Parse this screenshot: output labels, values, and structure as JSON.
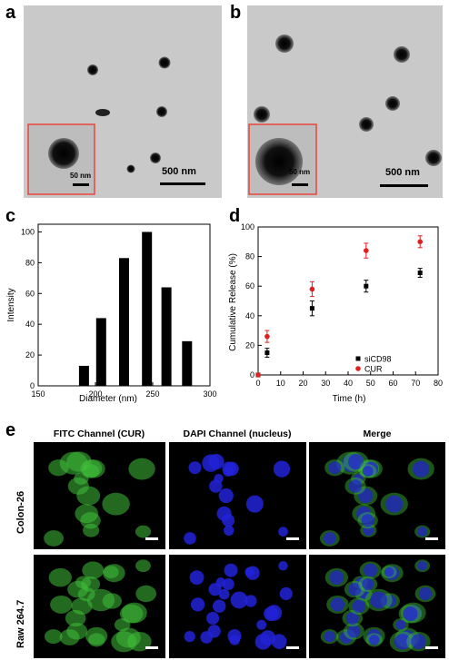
{
  "panels": {
    "a": {
      "letter": "a",
      "scale_main": "500 nm",
      "scale_inset": "50 nm"
    },
    "b": {
      "letter": "b",
      "scale_main": "500 nm",
      "scale_inset": "50 nm"
    },
    "c": {
      "letter": "c"
    },
    "d": {
      "letter": "d"
    },
    "e": {
      "letter": "e",
      "columns": [
        "FITC Channel (CUR)",
        "DAPI Channel (nucleus)",
        "Merge"
      ],
      "rows": [
        "Colon-26",
        "Raw 264.7"
      ]
    }
  },
  "colors": {
    "tem_bg": "#c9c9c9",
    "inset_border": "#e8463c",
    "fitc": "#3fbf3a",
    "dapi": "#2222d8",
    "cur_series": "#e02020",
    "sicd98_series": "#000000"
  },
  "chart_data": [
    {
      "type": "bar",
      "panel": "c",
      "title": "",
      "xlabel": "Diameter (nm)",
      "ylabel": "Intensity",
      "x": [
        190,
        205,
        225,
        245,
        262,
        280
      ],
      "values": [
        13,
        44,
        83,
        100,
        64,
        29
      ],
      "xlim": [
        150,
        300
      ],
      "ylim": [
        0,
        105
      ],
      "xticks": [
        "150",
        "200",
        "250",
        "300"
      ],
      "yticks": [
        "0",
        "20",
        "40",
        "60",
        "80",
        "100"
      ]
    },
    {
      "type": "scatter",
      "panel": "d",
      "title": "",
      "xlabel": "Time (h)",
      "ylabel": "Cumulative Release (%)",
      "xlim": [
        0,
        80
      ],
      "ylim": [
        0,
        100
      ],
      "xticks": [
        "0",
        "10",
        "20",
        "30",
        "40",
        "50",
        "60",
        "70",
        "80"
      ],
      "yticks": [
        "0",
        "20",
        "40",
        "60",
        "80",
        "100"
      ],
      "legend_position": "bottom-right",
      "series": [
        {
          "name": "siCD98",
          "color": "#000000",
          "x": [
            0,
            4,
            24,
            48,
            72
          ],
          "y": [
            0,
            15,
            45,
            60,
            69
          ],
          "err": [
            0,
            3,
            5,
            4,
            3
          ]
        },
        {
          "name": "CUR",
          "color": "#e02020",
          "x": [
            0,
            4,
            24,
            48,
            72
          ],
          "y": [
            0,
            26,
            58,
            84,
            90
          ],
          "err": [
            0,
            4,
            5,
            5,
            4
          ]
        }
      ]
    }
  ]
}
